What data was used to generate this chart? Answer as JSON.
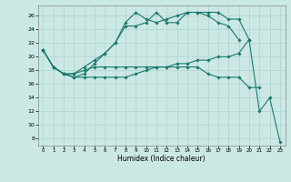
{
  "title": "",
  "xlabel": "Humidex (Indice chaleur)",
  "ylabel": "",
  "background_color": "#cce8e4",
  "grid_color": "#aad4d0",
  "line_color": "#1a7a6e",
  "xlim": [
    -0.5,
    23.5
  ],
  "ylim": [
    7,
    27.5
  ],
  "yticks": [
    8,
    10,
    12,
    14,
    16,
    18,
    20,
    22,
    24,
    26
  ],
  "xticks": [
    0,
    1,
    2,
    3,
    4,
    5,
    6,
    7,
    8,
    9,
    10,
    11,
    12,
    13,
    14,
    15,
    16,
    17,
    18,
    19,
    20,
    21,
    22,
    23
  ],
  "marker_size": 1.8,
  "linewidth": 0.8,
  "series": [
    [
      21.0,
      18.5,
      17.5,
      17.0,
      17.5,
      19.0,
      20.5,
      22.0,
      24.5,
      24.5,
      25.0,
      26.5,
      25.0,
      25.0,
      26.5,
      26.5,
      26.0,
      25.0,
      24.5,
      22.5,
      null,
      null,
      null,
      null
    ],
    [
      21.0,
      18.5,
      17.5,
      17.5,
      18.5,
      19.5,
      20.5,
      22.0,
      25.0,
      26.5,
      25.5,
      25.0,
      25.5,
      26.0,
      26.5,
      26.5,
      26.5,
      26.5,
      25.5,
      25.5,
      22.5,
      12.0,
      14.0,
      7.5
    ],
    [
      21.0,
      18.5,
      17.5,
      17.5,
      18.0,
      18.5,
      18.5,
      18.5,
      18.5,
      18.5,
      18.5,
      18.5,
      18.5,
      18.5,
      18.5,
      18.5,
      17.5,
      17.0,
      17.0,
      17.0,
      15.5,
      15.5,
      null,
      null
    ],
    [
      21.0,
      18.5,
      17.5,
      17.0,
      17.0,
      17.0,
      17.0,
      17.0,
      17.0,
      17.5,
      18.0,
      18.5,
      18.5,
      19.0,
      19.0,
      19.5,
      19.5,
      20.0,
      20.0,
      20.5,
      22.5,
      null,
      null,
      null
    ]
  ]
}
